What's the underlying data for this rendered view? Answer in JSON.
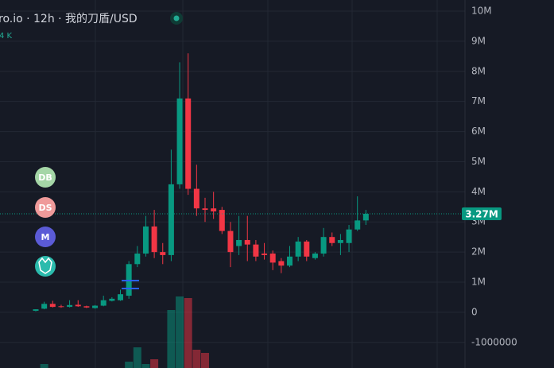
{
  "chart_data": {
    "type": "candlestick",
    "title": "ro.io · 12h · 我的刀盾/USD",
    "subtitle": "4 K",
    "indicators": [
      "DB",
      "DS",
      "M"
    ],
    "ylim": [
      -1850000,
      10370000
    ],
    "yticks": [
      {
        "value": 10000000,
        "label": "10M"
      },
      {
        "value": 9000000,
        "label": "9M"
      },
      {
        "value": 8000000,
        "label": "8M"
      },
      {
        "value": 7000000,
        "label": "7M"
      },
      {
        "value": 6000000,
        "label": "6M"
      },
      {
        "value": 5000000,
        "label": "5M"
      },
      {
        "value": 4000000,
        "label": "4M"
      },
      {
        "value": 3000000,
        "label": "3M"
      },
      {
        "value": 2000000,
        "label": "2M"
      },
      {
        "value": 1000000,
        "label": "1M"
      },
      0,
      -1000000
    ],
    "last_price": 3270000,
    "last_price_label": "3.27M",
    "up_color": "#089981",
    "down_color": "#f23645",
    "grid": true,
    "series": [
      {
        "open": [
          50000,
          120000,
          280000,
          200000,
          180000,
          250000,
          200000,
          140000,
          220000,
          380000,
          400000,
          550000,
          1600000,
          1950000,
          2850000,
          2000000,
          1900000,
          4250000,
          7100000,
          4100000,
          3450000,
          3450000,
          3400000,
          2700000,
          2200000,
          2400000,
          2250000,
          1950000,
          1950000,
          1700000,
          1550000,
          1850000,
          2350000,
          1800000,
          1950000,
          2500000,
          2300000,
          2300000,
          2750000,
          3050000
        ],
        "high": [
          100000,
          350000,
          380000,
          250000,
          400000,
          400000,
          220000,
          240000,
          550000,
          500000,
          750000,
          1700000,
          2200000,
          3200000,
          3400000,
          2300000,
          5400000,
          8300000,
          8600000,
          4900000,
          3800000,
          4000000,
          3500000,
          3000000,
          3200000,
          3200000,
          2400000,
          2300000,
          2050000,
          1800000,
          2200000,
          2500000,
          2400000,
          2000000,
          2800000,
          2650000,
          2600000,
          2900000,
          3850000,
          3400000
        ],
        "low": [
          30000,
          100000,
          160000,
          150000,
          160000,
          180000,
          140000,
          120000,
          200000,
          360000,
          380000,
          450000,
          1500000,
          1850000,
          1800000,
          1600000,
          1700000,
          4100000,
          3900000,
          3200000,
          3000000,
          3100000,
          2600000,
          1500000,
          1900000,
          1700000,
          1700000,
          1750000,
          1400000,
          1300000,
          1500000,
          1700000,
          1700000,
          1750000,
          1850000,
          2200000,
          1900000,
          2000000,
          2700000,
          2900000
        ],
        "close": [
          100000,
          280000,
          180000,
          180000,
          240000,
          200000,
          160000,
          220000,
          400000,
          450000,
          600000,
          1600000,
          1950000,
          2850000,
          2000000,
          1900000,
          4250000,
          7100000,
          4100000,
          3450000,
          3400000,
          3350000,
          2700000,
          2000000,
          2400000,
          2250000,
          1850000,
          1900000,
          1650000,
          1550000,
          1850000,
          2350000,
          1850000,
          1950000,
          2500000,
          2300000,
          2400000,
          2750000,
          3050000,
          3270000
        ],
        "volume": [
          0,
          5,
          0,
          0,
          0,
          0,
          0,
          0,
          0,
          0,
          0,
          8,
          26,
          5,
          11,
          0,
          73,
          90,
          88,
          23,
          19,
          0,
          0,
          0,
          0,
          0,
          0,
          0,
          0,
          0,
          0,
          0,
          0,
          0,
          0,
          0,
          0,
          0,
          0,
          0
        ]
      }
    ]
  }
}
